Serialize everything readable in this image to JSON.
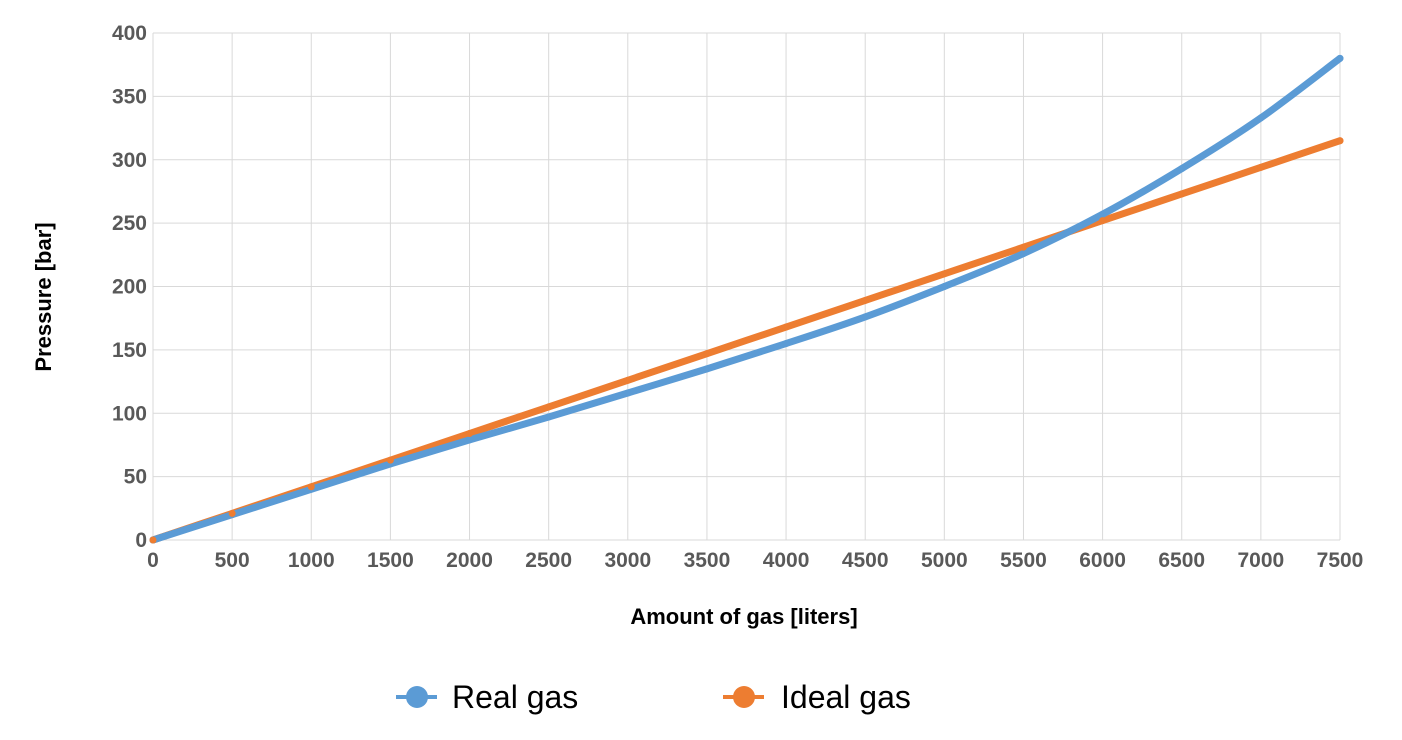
{
  "chart_data": {
    "type": "line",
    "title": "",
    "xlabel": "Amount of gas [liters]",
    "ylabel": "Pressure [bar]",
    "xlim": [
      0,
      7500
    ],
    "ylim": [
      0,
      400
    ],
    "xticks": [
      0,
      500,
      1000,
      1500,
      2000,
      2500,
      3000,
      3500,
      4000,
      4500,
      5000,
      5500,
      6000,
      6500,
      7000,
      7500
    ],
    "yticks": [
      0,
      50,
      100,
      150,
      200,
      250,
      300,
      350,
      400
    ],
    "grid": true,
    "legend": "bottom",
    "x": [
      0,
      500,
      1000,
      1500,
      2000,
      2500,
      3000,
      3500,
      4000,
      4500,
      5000,
      5500,
      6000,
      6500,
      7000,
      7500
    ],
    "series": [
      {
        "name": "Real gas",
        "color": "#5b9bd5",
        "values": [
          0,
          20,
          40,
          60,
          79,
          97,
          116,
          135,
          155,
          176,
          200,
          226,
          257,
          293,
          333,
          380
        ]
      },
      {
        "name": "Ideal gas",
        "color": "#ed7d31",
        "values": [
          0,
          21,
          42,
          63,
          84,
          105,
          126,
          147,
          168,
          189,
          210,
          231,
          252,
          273,
          294,
          315
        ]
      }
    ]
  }
}
